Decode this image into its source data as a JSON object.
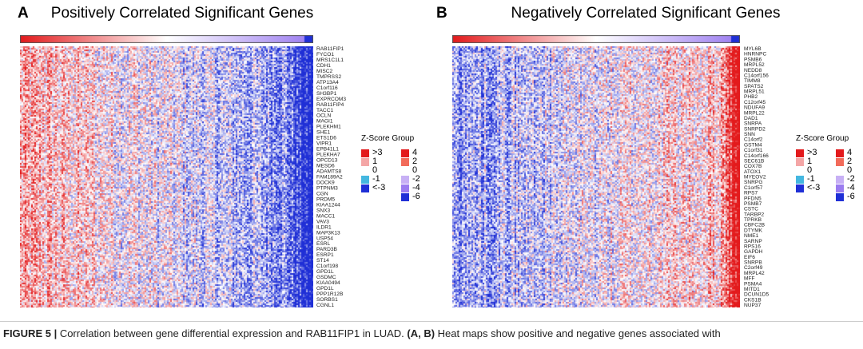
{
  "colors": {
    "red": "#e31a1c",
    "blue": "#1f2fd6",
    "cyan": "#44b7e0",
    "violet": "#9b7cf0",
    "white": "#ffffff"
  },
  "panel_a": {
    "letter": "A",
    "title": "Positively Correlated Significant Genes",
    "legend_title": "Z-Score Group",
    "legend_left_labels": [
      ">3",
      "1",
      "0",
      "-1",
      "<-3"
    ],
    "legend_right_labels": [
      "4",
      "2",
      "0",
      "-2",
      "-4",
      "-6"
    ],
    "genes": [
      "RAB11FIP1",
      "FYCO1",
      "MRS1C1L1",
      "CDH1",
      "MISC2",
      "TMPRSS2",
      "ATP13A4",
      "C1orf116",
      "SH3BP1",
      "EXPRCOM3",
      "RAB11FIP4",
      "TACC1",
      "OCLN",
      "MAGI1",
      "PLEKHM1",
      "SHE1",
      "ETS1D6",
      "VIPR1",
      "EPB41L1",
      "PLEKHA7",
      "OPCD13",
      "MESD6",
      "ADAMTS8",
      "FAM189A2",
      "DOCK9",
      "PTPNM3",
      "CGN",
      "PRDM5",
      "KIAA1244",
      "SNX3",
      "MACC1",
      "VAV3",
      "ILDR1",
      "MAP3K13",
      "USP54",
      "ESRL",
      "PARD3B",
      "ESRP1",
      "ST14",
      "C1orf198",
      "GPD1L",
      "GSDMC",
      "KIAA0494",
      "GPD1L",
      "PPP1R12B",
      "SORBS1",
      "CGNL1"
    ]
  },
  "panel_b": {
    "letter": "B",
    "title": "Negatively Correlated Significant Genes",
    "legend_title": "Z-Score Group",
    "legend_left_labels": [
      ">3",
      "1",
      "0",
      "-1",
      "<-3"
    ],
    "legend_right_labels": [
      "4",
      "2",
      "0",
      "-2",
      "-4",
      "-6"
    ],
    "genes": [
      "MYL6B",
      "HNRNPC",
      "PSMB6",
      "MRPL52",
      "NEDD8",
      "C14orf156",
      "TIMM8",
      "SPATS2",
      "MRPL51",
      "PHB2",
      "C12orf45",
      "NDUFA9",
      "MRPL22",
      "DAD1",
      "SNRPA",
      "SNRPD2",
      "SNN",
      "C14orf2",
      "GSTM4",
      "C1orf31",
      "C14orf166",
      "SEC61B",
      "COX7B",
      "ATOX1",
      "MYEOV2",
      "SNRPG",
      "C1orf57",
      "RPS7",
      "PFDN5",
      "PSMB7",
      "CSTC",
      "TARBP2",
      "TPRKB",
      "CBFC2B",
      "DTYMK",
      "NME1",
      "SARNP",
      "RPS16",
      "GAPDH",
      "EIF6",
      "SNRPB",
      "C2orf49",
      "MRPL42",
      "MFF",
      "PSMA4",
      "MITD1",
      "DCUN1D5",
      "CKS1B",
      "NUP37"
    ]
  },
  "caption": {
    "fig_label": "FIGURE 5 |",
    "text_1": " Correlation between gene differential expression and RAB11FIP1 in LUAD. ",
    "bold_ab": "(A, B)",
    "text_2": " Heat maps show positive and negative genes associated with"
  }
}
